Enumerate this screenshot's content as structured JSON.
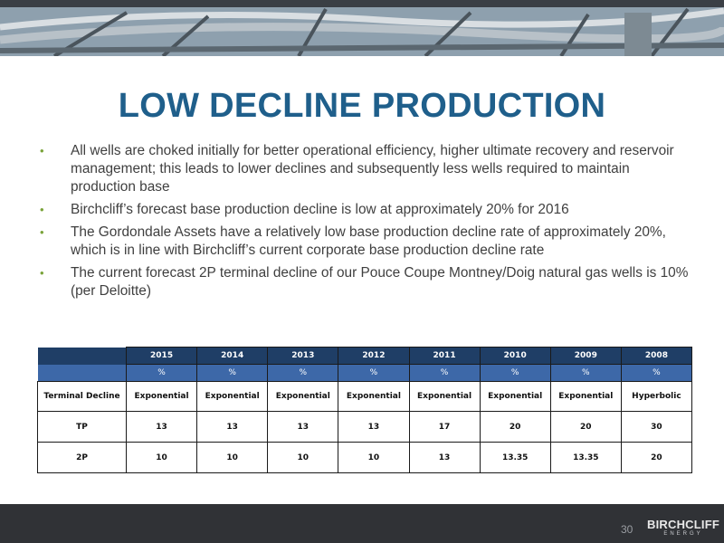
{
  "slide": {
    "title": "LOW DECLINE PRODUCTION",
    "bullets": [
      "All wells are choked initially for better operational efficiency, higher ultimate recovery and reservoir management; this leads to lower declines and subsequently less wells required to maintain production base",
      "Birchcliff’s forecast base production decline is low at approximately 20% for 2016",
      "The Gordondale Assets have a relatively low base production decline rate of approximately 20%, which is in line with Birchcliff’s current corporate base production decline rate",
      "The current forecast 2P terminal decline of our Pouce Coupe Montney/Doig natural gas wells is 10% (per Deloitte)"
    ],
    "bullet_marker": "•"
  },
  "table": {
    "years": [
      "2015",
      "2014",
      "2013",
      "2012",
      "2011",
      "2010",
      "2009",
      "2008"
    ],
    "units": [
      "%",
      "%",
      "%",
      "%",
      "%",
      "%",
      "%",
      "%"
    ],
    "rows": [
      {
        "label": "Terminal Decline",
        "values": [
          "Exponential",
          "Exponential",
          "Exponential",
          "Exponential",
          "Exponential",
          "Exponential",
          "Exponential",
          "Hyperbolic"
        ]
      },
      {
        "label": "TP",
        "values": [
          "13",
          "13",
          "13",
          "13",
          "17",
          "20",
          "20",
          "30"
        ]
      },
      {
        "label": "2P",
        "values": [
          "10",
          "10",
          "10",
          "10",
          "13",
          "13.35",
          "13.35",
          "20"
        ]
      }
    ]
  },
  "footer": {
    "page_number": "30",
    "logo_text": "BIRCHCLIFF",
    "logo_subtext": "ENERGY"
  },
  "colors": {
    "title": "#1f5f8b",
    "header_year_row": "#1f3e66",
    "header_unit_row": "#3d68a8",
    "bullet_marker": "#7aa33a",
    "footer": "#303236"
  }
}
